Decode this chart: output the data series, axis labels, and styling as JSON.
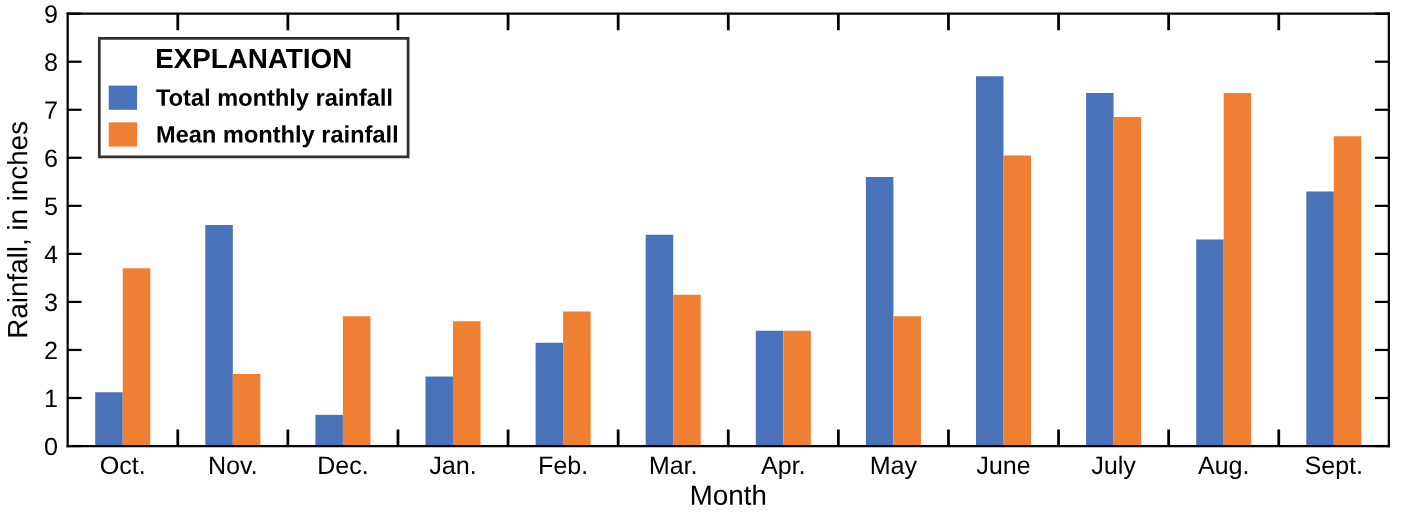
{
  "chart_data": {
    "type": "bar",
    "xlabel": "Month",
    "ylabel": "Rainfall, in inches",
    "legend_title": "EXPLANATION",
    "legend": "top left",
    "grid": false,
    "categories": [
      "Oct.",
      "Nov.",
      "Dec.",
      "Jan.",
      "Feb.",
      "Mar.",
      "Apr.",
      "May",
      "June",
      "July",
      "Aug.",
      "Sept."
    ],
    "series": [
      {
        "name": "Total monthly rainfall",
        "color": "#4a72b8",
        "values": [
          1.12,
          4.6,
          0.65,
          1.45,
          2.15,
          4.4,
          2.4,
          5.6,
          7.7,
          7.35,
          4.3,
          5.3
        ]
      },
      {
        "name": "Mean monthly rainfall",
        "color": "#ef8033",
        "values": [
          3.7,
          1.5,
          2.7,
          2.6,
          2.8,
          3.15,
          2.4,
          2.7,
          6.05,
          6.85,
          7.35,
          6.45
        ]
      }
    ],
    "ylim": [
      0,
      9
    ],
    "yticks": [
      0,
      1,
      2,
      3,
      4,
      5,
      6,
      7,
      8,
      9
    ]
  }
}
